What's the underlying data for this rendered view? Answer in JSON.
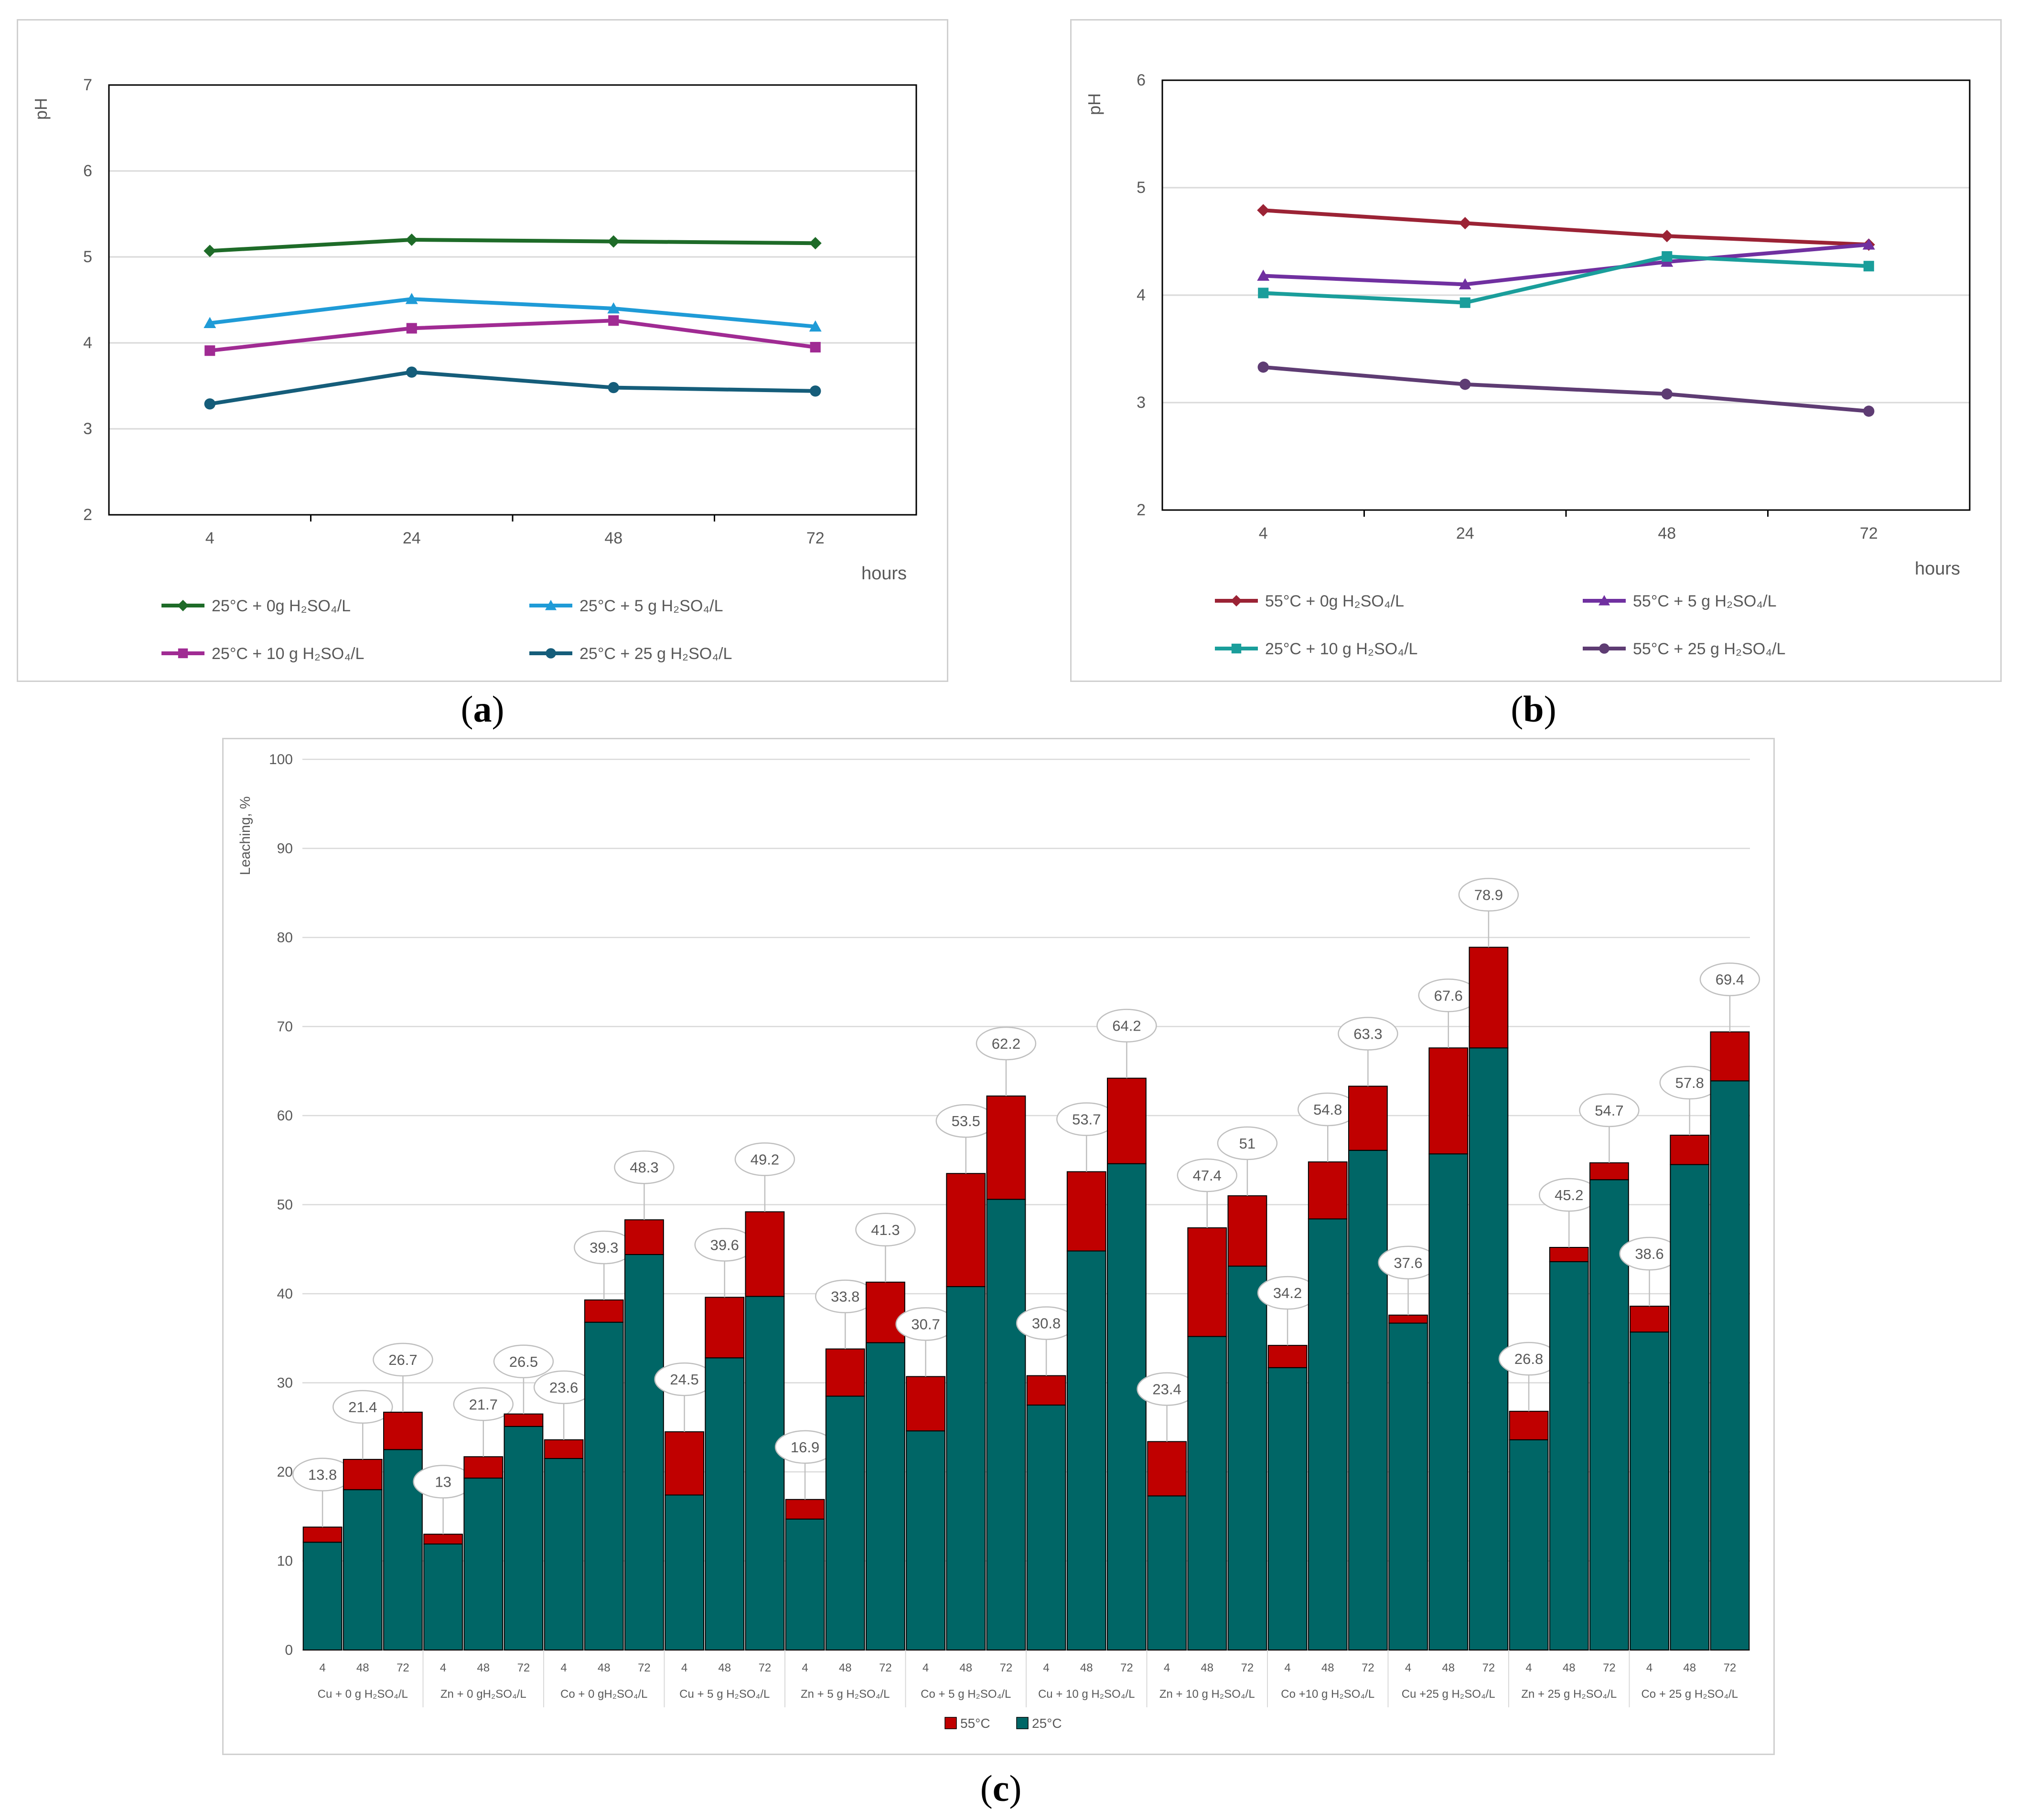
{
  "captions": {
    "a": "a",
    "b": "b",
    "c": "c"
  },
  "chart_data": [
    {
      "type": "line",
      "id": "a",
      "title": "",
      "xlabel": "hours",
      "ylabel": "pH",
      "categories": [
        "4",
        "24",
        "48",
        "72"
      ],
      "ylim": [
        2,
        7
      ],
      "yticks": [
        2,
        3,
        4,
        5,
        6,
        7
      ],
      "grid": true,
      "legend_position": "bottom",
      "series": [
        {
          "name": "25°C + 0g H₂SO₄/L",
          "values": [
            5.07,
            5.2,
            5.18,
            5.16
          ],
          "color": "#1e6b28",
          "marker": "diamond"
        },
        {
          "name": "25°C + 5 g  H₂SO₄/L",
          "values": [
            4.23,
            4.51,
            4.4,
            4.19
          ],
          "color": "#1f9bd7",
          "marker": "triangle"
        },
        {
          "name": "25°C + 10 g  H₂SO₄/L",
          "values": [
            3.91,
            4.17,
            4.26,
            3.95
          ],
          "color": "#a02b93",
          "marker": "square"
        },
        {
          "name": "25°C + 25 g  H₂SO₄/L",
          "values": [
            3.29,
            3.66,
            3.48,
            3.44
          ],
          "color": "#155d7a",
          "marker": "circle"
        }
      ]
    },
    {
      "type": "line",
      "id": "b",
      "title": "",
      "xlabel": "hours",
      "ylabel": "pH",
      "categories": [
        "4",
        "24",
        "48",
        "72"
      ],
      "ylim": [
        2,
        6
      ],
      "yticks": [
        2,
        3,
        4,
        5,
        6
      ],
      "grid": true,
      "legend_position": "bottom",
      "series": [
        {
          "name": "55°C + 0g H₂SO₄/L",
          "values": [
            4.79,
            4.67,
            4.55,
            4.47
          ],
          "color": "#9b2335",
          "marker": "diamond"
        },
        {
          "name": "55°C + 5 g H₂SO₄/L",
          "values": [
            4.18,
            4.1,
            4.31,
            4.47
          ],
          "color": "#7030a0",
          "marker": "triangle"
        },
        {
          "name": "25°C + 10 g H₂SO₄/L",
          "values": [
            4.02,
            3.93,
            4.36,
            4.27
          ],
          "color": "#1a9e9b",
          "marker": "square"
        },
        {
          "name": "55°C + 25 g H₂SO₄/L",
          "values": [
            3.33,
            3.17,
            3.08,
            2.92
          ],
          "color": "#5e3c73",
          "marker": "circle"
        }
      ]
    },
    {
      "type": "bar",
      "stacked": true,
      "id": "c",
      "title": "",
      "xlabel": "",
      "ylabel": "Leaching, %",
      "ylim": [
        0,
        100
      ],
      "yticks": [
        0,
        10,
        20,
        30,
        40,
        50,
        60,
        70,
        80,
        90,
        100
      ],
      "grid": true,
      "legend_position": "bottom",
      "groups": [
        {
          "label": "Cu + 0 g H₂SO₄/L",
          "ticks": [
            "4",
            "48",
            "72"
          ]
        },
        {
          "label": "Zn + 0 gH₂SO₄/L",
          "ticks": [
            "4",
            "48",
            "72"
          ]
        },
        {
          "label": "Co + 0 gH₂SO₄/L",
          "ticks": [
            "4",
            "48",
            "72"
          ]
        },
        {
          "label": "Cu + 5 g H₂SO₄/L",
          "ticks": [
            "4",
            "48",
            "72"
          ]
        },
        {
          "label": "Zn + 5 g H₂SO₄/L",
          "ticks": [
            "4",
            "48",
            "72"
          ]
        },
        {
          "label": "Co + 5 g H₂SO₄/L",
          "ticks": [
            "4",
            "48",
            "72"
          ]
        },
        {
          "label": "Cu + 10 g H₂SO₄/L",
          "ticks": [
            "4",
            "48",
            "72"
          ]
        },
        {
          "label": "Zn + 10 g H₂SO₄/L",
          "ticks": [
            "4",
            "48",
            "72"
          ]
        },
        {
          "label": "Co +10 g H₂SO₄/L",
          "ticks": [
            "4",
            "48",
            "72"
          ]
        },
        {
          "label": "Cu +25 g H₂SO₄/L",
          "ticks": [
            "4",
            "48",
            "72"
          ]
        },
        {
          "label": "Zn + 25 g H₂SO₄/L",
          "ticks": [
            "4",
            "48",
            "72"
          ]
        },
        {
          "label": "Co + 25 g H₂SO₄/L",
          "ticks": [
            "4",
            "48",
            "72"
          ]
        }
      ],
      "series": [
        {
          "name": "25°C",
          "color": "#006666",
          "values": [
            12.1,
            18,
            22.5,
            11.9,
            19.3,
            25.1,
            21.5,
            36.8,
            44.4,
            17.4,
            32.8,
            39.7,
            14.7,
            28.5,
            34.5,
            24.6,
            40.8,
            50.6,
            27.5,
            44.8,
            54.6,
            17.3,
            35.2,
            43.1,
            31.7,
            48.4,
            56.1,
            36.7,
            55.7,
            67.6,
            23.6,
            43.6,
            52.8,
            35.7,
            54.5,
            63.9
          ]
        },
        {
          "name": "55°C",
          "color": "#c00000",
          "values": [
            1.7,
            3.4,
            4.2,
            1.1,
            2.4,
            1.4,
            2.1,
            2.5,
            3.9,
            7.1,
            6.8,
            9.5,
            2.2,
            5.3,
            6.8,
            6.1,
            12.7,
            11.6,
            3.3,
            8.9,
            9.6,
            6.1,
            12.2,
            7.9,
            2.5,
            6.4,
            7.2,
            0.9,
            11.9,
            11.3,
            3.2,
            1.6,
            1.9,
            2.9,
            3.3,
            5.5
          ]
        }
      ],
      "totals": [
        "13.8",
        "21.4",
        "26.7",
        "13",
        "21.7",
        "26.5",
        "23.6",
        "39.3",
        "48.3",
        "24.5",
        "39.6",
        "49.2",
        "16.9",
        "33.8",
        "41.3",
        "30.7",
        "53.5",
        "62.2",
        "30.8",
        "53.7",
        "64.2",
        "23.4",
        "47.4",
        "51",
        "34.2",
        "54.8",
        "63.3",
        "37.6",
        "67.6",
        "78.9",
        "26.8",
        "45.2",
        "54.7",
        "38.6",
        "57.8",
        "69.4"
      ]
    }
  ]
}
